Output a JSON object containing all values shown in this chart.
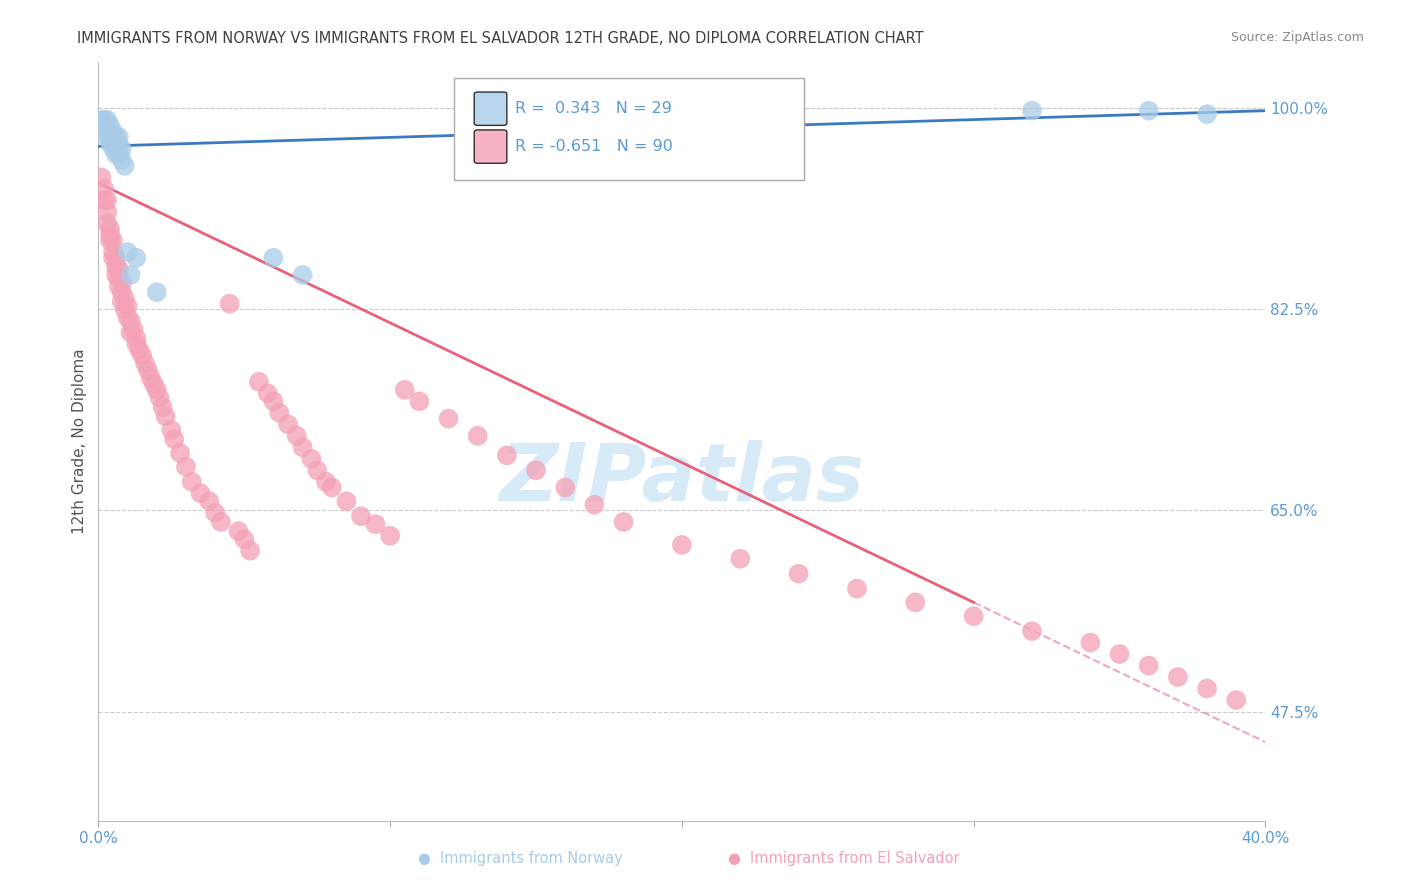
{
  "title": "IMMIGRANTS FROM NORWAY VS IMMIGRANTS FROM EL SALVADOR 12TH GRADE, NO DIPLOMA CORRELATION CHART",
  "source": "Source: ZipAtlas.com",
  "ylabel": "12th Grade, No Diploma",
  "xlim": [
    0.0,
    0.4
  ],
  "ylim": [
    0.38,
    1.04
  ],
  "ytick_labels_right": [
    "100.0%",
    "82.5%",
    "65.0%",
    "47.5%"
  ],
  "ytick_positions_right": [
    1.0,
    0.825,
    0.65,
    0.475
  ],
  "norway_R": 0.343,
  "norway_N": 29,
  "salvador_R": -0.651,
  "salvador_N": 90,
  "norway_color": "#a8cce8",
  "salvador_color": "#f4a0b5",
  "norway_line_color": "#3a7bbf",
  "salvador_line_color": "#e8607a",
  "background_color": "#ffffff",
  "grid_color": "#cccccc",
  "watermark_color": "#d6eaf8",
  "tick_label_color": "#5b9bd5",
  "title_color": "#404040",
  "norway_x": [
    0.001,
    0.002,
    0.002,
    0.003,
    0.003,
    0.003,
    0.004,
    0.004,
    0.004,
    0.005,
    0.005,
    0.005,
    0.006,
    0.006,
    0.007,
    0.007,
    0.007,
    0.008,
    0.008,
    0.009,
    0.01,
    0.011,
    0.013,
    0.02,
    0.06,
    0.07,
    0.32,
    0.36,
    0.38
  ],
  "norway_y": [
    0.99,
    0.985,
    0.99,
    0.975,
    0.98,
    0.99,
    0.97,
    0.975,
    0.985,
    0.965,
    0.97,
    0.98,
    0.96,
    0.975,
    0.96,
    0.968,
    0.975,
    0.955,
    0.965,
    0.95,
    0.875,
    0.855,
    0.87,
    0.84,
    0.87,
    0.855,
    0.998,
    0.998,
    0.995
  ],
  "salvador_x": [
    0.001,
    0.002,
    0.002,
    0.003,
    0.003,
    0.003,
    0.004,
    0.004,
    0.004,
    0.005,
    0.005,
    0.005,
    0.006,
    0.006,
    0.006,
    0.007,
    0.007,
    0.007,
    0.008,
    0.008,
    0.008,
    0.009,
    0.009,
    0.01,
    0.01,
    0.011,
    0.011,
    0.012,
    0.013,
    0.013,
    0.014,
    0.015,
    0.016,
    0.017,
    0.018,
    0.019,
    0.02,
    0.021,
    0.022,
    0.023,
    0.025,
    0.026,
    0.028,
    0.03,
    0.032,
    0.035,
    0.038,
    0.04,
    0.042,
    0.045,
    0.048,
    0.05,
    0.052,
    0.055,
    0.058,
    0.06,
    0.062,
    0.065,
    0.068,
    0.07,
    0.073,
    0.075,
    0.078,
    0.08,
    0.085,
    0.09,
    0.095,
    0.1,
    0.105,
    0.11,
    0.12,
    0.13,
    0.14,
    0.15,
    0.16,
    0.17,
    0.18,
    0.2,
    0.22,
    0.24,
    0.26,
    0.28,
    0.3,
    0.32,
    0.34,
    0.35,
    0.36,
    0.37,
    0.38,
    0.39
  ],
  "salvador_y": [
    0.94,
    0.93,
    0.92,
    0.92,
    0.91,
    0.9,
    0.895,
    0.89,
    0.885,
    0.885,
    0.875,
    0.87,
    0.87,
    0.862,
    0.855,
    0.86,
    0.852,
    0.845,
    0.848,
    0.84,
    0.832,
    0.835,
    0.825,
    0.828,
    0.818,
    0.815,
    0.805,
    0.808,
    0.8,
    0.795,
    0.79,
    0.785,
    0.778,
    0.772,
    0.765,
    0.76,
    0.755,
    0.748,
    0.74,
    0.732,
    0.72,
    0.712,
    0.7,
    0.688,
    0.675,
    0.665,
    0.658,
    0.648,
    0.64,
    0.83,
    0.632,
    0.625,
    0.615,
    0.762,
    0.752,
    0.745,
    0.735,
    0.725,
    0.715,
    0.705,
    0.695,
    0.685,
    0.675,
    0.67,
    0.658,
    0.645,
    0.638,
    0.628,
    0.755,
    0.745,
    0.73,
    0.715,
    0.698,
    0.685,
    0.67,
    0.655,
    0.64,
    0.62,
    0.608,
    0.595,
    0.582,
    0.57,
    0.558,
    0.545,
    0.535,
    0.525,
    0.515,
    0.505,
    0.495,
    0.485
  ]
}
